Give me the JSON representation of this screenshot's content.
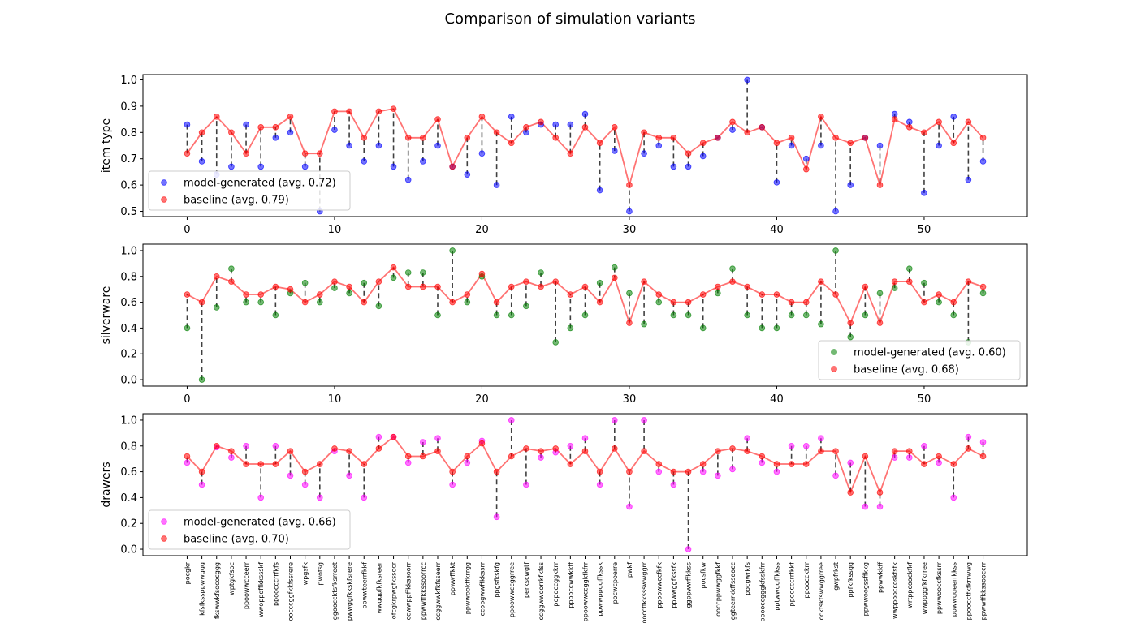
{
  "title": "Comparison of simulation variants",
  "colors": {
    "baseline": "#ff0000",
    "item_type": "#0000ff",
    "silverware": "#008000",
    "drawers": "#ff00ff",
    "connector": "#404040"
  },
  "chart_data": [
    {
      "type": "scatter",
      "ylabel": "item type",
      "xlim": [
        -3,
        57
      ],
      "ylim": [
        0.48,
        1.02
      ],
      "yticks": [
        0.5,
        0.6,
        0.7,
        0.8,
        0.9,
        1.0
      ],
      "xticks": [
        0,
        10,
        20,
        30,
        40,
        50
      ],
      "legend_position": "lower-left",
      "series": [
        {
          "name": "model-generated (avg. 0.72)",
          "color": "#0000ff",
          "values": [
            0.83,
            0.69,
            0.64,
            0.67,
            0.83,
            0.67,
            0.78,
            0.8,
            0.67,
            0.5,
            0.81,
            0.75,
            0.69,
            0.75,
            0.67,
            0.62,
            0.69,
            0.75,
            0.67,
            0.64,
            0.72,
            0.6,
            0.86,
            0.8,
            0.83,
            0.83,
            0.83,
            0.87,
            0.58,
            0.73,
            0.5,
            0.72,
            0.75,
            0.67,
            0.67,
            0.71,
            0.78,
            0.81,
            1.0,
            0.82,
            0.61,
            0.75,
            0.7,
            0.75,
            0.5,
            0.6,
            0.78,
            0.75,
            0.87,
            0.84,
            0.57,
            0.75,
            0.86,
            0.62,
            0.69
          ]
        },
        {
          "name": "baseline (avg. 0.79)",
          "color": "#ff0000",
          "values": [
            0.72,
            0.8,
            0.86,
            0.8,
            0.72,
            0.82,
            0.82,
            0.86,
            0.72,
            0.72,
            0.88,
            0.88,
            0.78,
            0.88,
            0.89,
            0.78,
            0.78,
            0.85,
            0.67,
            0.78,
            0.86,
            0.8,
            0.76,
            0.82,
            0.84,
            0.78,
            0.72,
            0.82,
            0.76,
            0.82,
            0.6,
            0.8,
            0.78,
            0.78,
            0.72,
            0.76,
            0.78,
            0.84,
            0.8,
            0.82,
            0.76,
            0.78,
            0.66,
            0.86,
            0.78,
            0.76,
            0.78,
            0.6,
            0.85,
            0.82,
            0.8,
            0.84,
            0.76,
            0.84,
            0.78
          ]
        }
      ]
    },
    {
      "type": "scatter",
      "ylabel": "silverware",
      "xlim": [
        -3,
        57
      ],
      "ylim": [
        -0.05,
        1.05
      ],
      "yticks": [
        0.0,
        0.2,
        0.4,
        0.6,
        0.8,
        1.0
      ],
      "xticks": [
        0,
        10,
        20,
        30,
        40,
        50
      ],
      "legend_position": "lower-right",
      "series": [
        {
          "name": "model-generated (avg. 0.60)",
          "color": "#008000",
          "values": [
            0.4,
            0.0,
            0.56,
            0.86,
            0.6,
            0.6,
            0.5,
            0.67,
            0.75,
            0.6,
            0.71,
            0.67,
            0.75,
            0.57,
            0.79,
            0.83,
            0.83,
            0.5,
            1.0,
            0.6,
            0.8,
            0.5,
            0.5,
            0.57,
            0.83,
            0.29,
            0.4,
            0.5,
            0.75,
            0.87,
            0.67,
            0.43,
            0.6,
            0.5,
            0.5,
            0.4,
            0.67,
            0.86,
            0.5,
            0.4,
            0.4,
            0.5,
            0.5,
            0.43,
            1.0,
            0.33,
            0.5,
            0.67,
            0.71,
            0.86,
            0.75,
            0.6,
            0.5,
            0.29,
            0.67
          ]
        },
        {
          "name": "baseline (avg. 0.68)",
          "color": "#ff0000",
          "values": [
            0.66,
            0.6,
            0.8,
            0.76,
            0.66,
            0.66,
            0.72,
            0.7,
            0.6,
            0.66,
            0.76,
            0.72,
            0.6,
            0.76,
            0.87,
            0.72,
            0.72,
            0.72,
            0.6,
            0.66,
            0.82,
            0.6,
            0.72,
            0.76,
            0.72,
            0.76,
            0.66,
            0.72,
            0.6,
            0.79,
            0.44,
            0.76,
            0.66,
            0.6,
            0.6,
            0.66,
            0.72,
            0.76,
            0.72,
            0.66,
            0.66,
            0.6,
            0.6,
            0.76,
            0.66,
            0.44,
            0.72,
            0.44,
            0.76,
            0.76,
            0.6,
            0.66,
            0.6,
            0.76,
            0.72
          ]
        }
      ]
    },
    {
      "type": "scatter",
      "ylabel": "drawers",
      "xlim": [
        -3,
        57
      ],
      "ylim": [
        -0.05,
        1.05
      ],
      "yticks": [
        0.0,
        0.2,
        0.4,
        0.6,
        0.8,
        1.0
      ],
      "legend_position": "lower-left",
      "categories": [
        "pocgkr",
        "kfsfkssppwwggg",
        "fkswwkfsococggg",
        "wptgkfsoc",
        "ppoowwcceerr",
        "wwoppoffkkssskf",
        "ppoocccrrfkfs",
        "oocccggfkkfssrere",
        "wpgsfk",
        "pwofsg",
        "ggoocckfsfksrreet",
        "pwwggfkkskfsrere",
        "ppwwteerrfkkf",
        "wwggpfkfksreer",
        "ofcgkrpwgfkssocr",
        "ccwwppffkkssoorr",
        "ppwwffkkssoorrcc",
        "ccggwwkfkfsseerr",
        "ppwwffkkt",
        "ppwwookffkrrgg",
        "ccopgwwffkkssrr",
        "ppgsfkskfg",
        "ppoowwccggrree",
        "perkscwgtf",
        "ccggwwoorrkfkfss",
        "popoccggkkrr",
        "ppooccwwkkff",
        "ppoowwccggkfkfrr",
        "ppwwppggffkssk",
        "pocwcpoerre",
        "pwkf",
        "ooccffkkssswwggrr",
        "ppoowwccfkfk",
        "ppwwggfkssfk",
        "ggppwwffkkss",
        "pocsfkw",
        "ooccppwwggfkkf",
        "ggteerrkkffssoocc",
        "pocgwrkfs",
        "ppooccgggkfsskfrr",
        "pptwwggffkkss",
        "ppoocccrrfkkf",
        "ppoocckkrr",
        "cckfskfswwggrree",
        "gwpfrkst",
        "ppfkfkssgg",
        "ppwwoogssffkkg",
        "ppwwkkff",
        "wwppooccoskfsfk",
        "wrtppcoockfkf",
        "wwppggfkfkrree",
        "ppwwooccfkssrr",
        "ppwwggeerrkkss",
        "ppoocctfkfkrrwwg",
        "ppwwffkkssooccrr"
      ],
      "series": [
        {
          "name": "model-generated (avg. 0.66)",
          "color": "#ff00ff",
          "values": [
            0.67,
            0.5,
            0.79,
            0.71,
            0.8,
            0.4,
            0.8,
            0.57,
            0.5,
            0.4,
            0.76,
            0.57,
            0.4,
            0.87,
            0.87,
            0.67,
            0.83,
            0.86,
            0.5,
            0.67,
            0.84,
            0.25,
            1.0,
            0.5,
            0.71,
            0.75,
            0.8,
            0.86,
            0.5,
            1.0,
            0.33,
            1.0,
            0.6,
            0.5,
            0.0,
            0.6,
            0.57,
            0.62,
            0.86,
            0.67,
            0.6,
            0.8,
            0.8,
            0.86,
            0.57,
            0.67,
            0.33,
            0.33,
            0.71,
            0.71,
            0.8,
            0.67,
            0.4,
            0.87,
            0.83
          ]
        },
        {
          "name": "baseline (avg. 0.70)",
          "color": "#ff0000",
          "values": [
            0.72,
            0.6,
            0.8,
            0.76,
            0.66,
            0.66,
            0.66,
            0.76,
            0.6,
            0.66,
            0.78,
            0.76,
            0.66,
            0.78,
            0.87,
            0.72,
            0.72,
            0.76,
            0.6,
            0.72,
            0.82,
            0.6,
            0.72,
            0.78,
            0.76,
            0.78,
            0.66,
            0.76,
            0.6,
            0.78,
            0.6,
            0.76,
            0.66,
            0.6,
            0.6,
            0.66,
            0.76,
            0.78,
            0.76,
            0.72,
            0.66,
            0.66,
            0.66,
            0.76,
            0.76,
            0.44,
            0.72,
            0.44,
            0.76,
            0.76,
            0.66,
            0.72,
            0.66,
            0.78,
            0.72
          ]
        }
      ]
    }
  ]
}
